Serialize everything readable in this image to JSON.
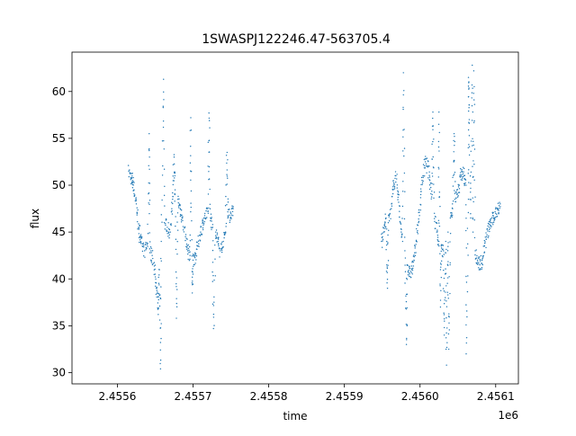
{
  "chart_data": {
    "type": "scatter",
    "title": "1SWASPJ122246.47-563705.4",
    "xlabel": "time",
    "ylabel": "flux",
    "x_offset_label": "1e6",
    "xlim": [
      2.45554,
      2.45613
    ],
    "ylim": [
      28.8,
      64.2
    ],
    "x_ticks": [
      2.4556,
      2.4557,
      2.4558,
      2.4559,
      2.456,
      2.4561
    ],
    "x_tick_labels": [
      "2.4556",
      "2.4557",
      "2.4558",
      "2.4559",
      "2.4560",
      "2.4561"
    ],
    "y_ticks": [
      30,
      35,
      40,
      45,
      50,
      55,
      60
    ],
    "y_tick_labels": [
      "30",
      "35",
      "40",
      "45",
      "50",
      "55",
      "60"
    ],
    "grid": false,
    "legend": "none",
    "marker_color": "#1f77b4",
    "series": [
      {
        "x": [
          2.455615,
          2.455618,
          2.45562,
          2.455622,
          2.455625,
          2.455628,
          2.45563,
          2.455633,
          2.455636,
          2.45564,
          2.455643,
          2.455646,
          2.45565,
          2.455652,
          2.455655,
          2.455658,
          2.455662,
          2.455666,
          2.45567,
          2.455673,
          2.455676,
          2.45568,
          2.455683,
          2.455686,
          2.45569,
          2.455693,
          2.455696,
          2.4557,
          2.455703,
          2.455706,
          2.45571,
          2.455713,
          2.455716,
          2.45572,
          2.455723,
          2.455726,
          2.45573,
          2.455733,
          2.455736,
          2.45574,
          2.455743,
          2.455746,
          2.45575,
          2.455753,
          2.455661,
          2.455657,
          2.455697,
          2.455721,
          2.455678,
          2.455642,
          2.455727,
          2.455745,
          2.455675,
          2.455699,
          2.455654
        ],
        "y": [
          51.5,
          50.8,
          50.5,
          49.5,
          48,
          45.5,
          44.5,
          43.5,
          43,
          43.8,
          42.8,
          42.5,
          40.5,
          39,
          41,
          44,
          46,
          45.5,
          45,
          48.5,
          49,
          48.5,
          47.5,
          46.5,
          44.5,
          43,
          42.5,
          42,
          42.5,
          43.5,
          45,
          46,
          46.5,
          47,
          46.5,
          45.5,
          45,
          44,
          43,
          44,
          45,
          46.5,
          47,
          47.5,
          61.3,
          30.4,
          57.2,
          57.7,
          35.8,
          55.5,
          34.7,
          53.5,
          53,
          38.5,
          36.2
        ]
      },
      {
        "x": [
          2.455949,
          2.455952,
          2.455955,
          2.455958,
          2.455962,
          2.455965,
          2.455968,
          2.455971,
          2.455974,
          2.455977,
          2.45598,
          2.455983,
          2.455986,
          2.455989,
          2.455992,
          2.455995,
          2.455998,
          2.456001,
          2.456004,
          2.456007,
          2.45601,
          2.456013,
          2.456016,
          2.456019,
          2.456022,
          2.456025,
          2.456028,
          2.456031,
          2.456034,
          2.456037,
          2.45604,
          2.456043,
          2.456046,
          2.456049,
          2.456052,
          2.456055,
          2.456058,
          2.456061,
          2.456064,
          2.456067,
          2.45607,
          2.456073,
          2.456076,
          2.456079,
          2.456082,
          2.456085,
          2.456088,
          2.456091,
          2.456094,
          2.456097,
          2.4561,
          2.456103,
          2.456106,
          2.455978,
          2.456017,
          2.456025,
          2.456035,
          2.456038,
          2.456064,
          2.456069,
          2.456071,
          2.455982,
          2.456032,
          2.455957,
          2.456065,
          2.456061,
          2.456045,
          2.456027
        ],
        "y": [
          44,
          45,
          46.5,
          46,
          47.5,
          50,
          51,
          49,
          46,
          44,
          43,
          41.5,
          40.5,
          41,
          42,
          44,
          46,
          49,
          51,
          52.5,
          52,
          50.5,
          49,
          47,
          45,
          44,
          43.5,
          43,
          44,
          45,
          46.5,
          47.5,
          48.5,
          49,
          50,
          51.5,
          51,
          50,
          48.5,
          46.5,
          45,
          43,
          42,
          41.5,
          42,
          43.5,
          44.5,
          45.5,
          46,
          46.5,
          47,
          47.5,
          48,
          62,
          57.8,
          57.8,
          30.8,
          32.5,
          61.5,
          62.8,
          62.2,
          33,
          34,
          39,
          57,
          32,
          55.5,
          37
        ]
      }
    ]
  }
}
